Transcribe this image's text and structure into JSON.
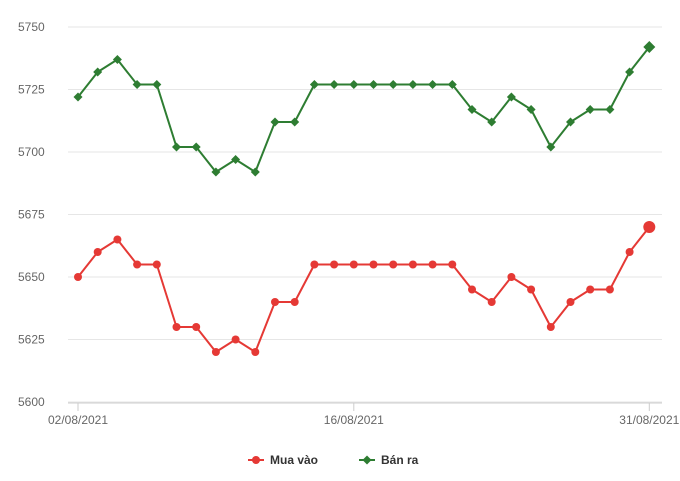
{
  "chart_data": {
    "type": "line",
    "title": "",
    "xlabel": "",
    "ylabel": "",
    "ylim": [
      5600,
      5750
    ],
    "yticks": [
      5600,
      5625,
      5650,
      5675,
      5700,
      5725,
      5750
    ],
    "ytick_labels": [
      "5600",
      "5625",
      "5650",
      "5675",
      "5700",
      "5725",
      "5750"
    ],
    "x": [
      "02/08/2021",
      "03/08/2021",
      "04/08/2021",
      "05/08/2021",
      "06/08/2021",
      "07/08/2021",
      "08/08/2021",
      "09/08/2021",
      "10/08/2021",
      "11/08/2021",
      "12/08/2021",
      "13/08/2021",
      "14/08/2021",
      "15/08/2021",
      "16/08/2021",
      "17/08/2021",
      "18/08/2021",
      "19/08/2021",
      "20/08/2021",
      "21/08/2021",
      "22/08/2021",
      "23/08/2021",
      "24/08/2021",
      "25/08/2021",
      "26/08/2021",
      "27/08/2021",
      "28/08/2021",
      "29/08/2021",
      "30/08/2021",
      "31/08/2021"
    ],
    "xtick_labels": [
      {
        "index": 0,
        "label": "02/08/2021"
      },
      {
        "index": 14,
        "label": "16/08/2021"
      },
      {
        "index": 29,
        "label": "31/08/2021"
      }
    ],
    "grid": true,
    "legend_position": "bottom-center",
    "series": [
      {
        "name": "Mua vào",
        "color": "#e53935",
        "marker": "circle",
        "values": [
          5650,
          5660,
          5665,
          5655,
          5655,
          5630,
          5630,
          5620,
          5625,
          5620,
          5640,
          5640,
          5655,
          5655,
          5655,
          5655,
          5655,
          5655,
          5655,
          5655,
          5645,
          5640,
          5650,
          5645,
          5630,
          5640,
          5645,
          5645,
          5660,
          5670
        ]
      },
      {
        "name": "Bán ra",
        "color": "#2e7d32",
        "marker": "diamond",
        "values": [
          5722,
          5732,
          5737,
          5727,
          5727,
          5702,
          5702,
          5692,
          5697,
          5692,
          5712,
          5712,
          5727,
          5727,
          5727,
          5727,
          5727,
          5727,
          5727,
          5727,
          5717,
          5712,
          5722,
          5717,
          5702,
          5712,
          5717,
          5717,
          5732,
          5742
        ]
      }
    ]
  }
}
